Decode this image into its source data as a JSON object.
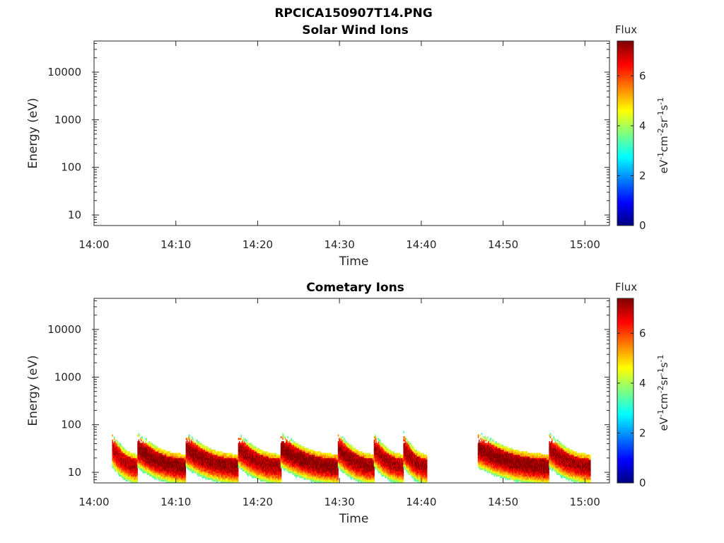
{
  "figure_title": "RPCICA150907T14.PNG",
  "colorbar": {
    "title": "Flux",
    "label_parts": [
      "eV",
      "-1",
      "cm",
      "-2",
      "sr",
      "-1",
      "s",
      "-1"
    ],
    "ticks": [
      0,
      2,
      4,
      6
    ],
    "range": [
      0,
      7.4
    ],
    "colormap": "jet"
  },
  "chart_data": [
    {
      "type": "heatmap",
      "title": "Solar Wind Ions",
      "xlabel": "Time",
      "ylabel": "Energy (eV)",
      "x_ticks": [
        "14:00",
        "14:10",
        "14:20",
        "14:30",
        "14:40",
        "14:50",
        "15:00"
      ],
      "x_range_minutes": [
        0,
        63
      ],
      "y_ticks": [
        10,
        100,
        1000,
        10000
      ],
      "y_scale": "log",
      "y_range": [
        6,
        45000
      ],
      "bursts": []
    },
    {
      "type": "heatmap",
      "title": "Cometary Ions",
      "xlabel": "Time",
      "ylabel": "Energy (eV)",
      "x_ticks": [
        "14:00",
        "14:10",
        "14:20",
        "14:30",
        "14:40",
        "14:50",
        "15:00"
      ],
      "x_range_minutes": [
        0,
        63
      ],
      "y_ticks": [
        10,
        100,
        1000,
        10000
      ],
      "y_scale": "log",
      "y_range": [
        6,
        45000
      ],
      "bursts": [
        {
          "start": 2.2,
          "end": 5.3,
          "peak": 7.0
        },
        {
          "start": 5.3,
          "end": 11.2,
          "peak": 7.4
        },
        {
          "start": 11.2,
          "end": 17.6,
          "peak": 7.3
        },
        {
          "start": 17.6,
          "end": 22.8,
          "peak": 7.2
        },
        {
          "start": 22.8,
          "end": 29.8,
          "peak": 7.4
        },
        {
          "start": 29.8,
          "end": 34.2,
          "peak": 7.3
        },
        {
          "start": 34.2,
          "end": 37.8,
          "peak": 7.1
        },
        {
          "start": 37.8,
          "end": 40.6,
          "peak": 7.2
        },
        {
          "start": 46.9,
          "end": 55.6,
          "peak": 7.4
        },
        {
          "start": 55.6,
          "end": 60.6,
          "peak": 7.2
        }
      ]
    }
  ]
}
